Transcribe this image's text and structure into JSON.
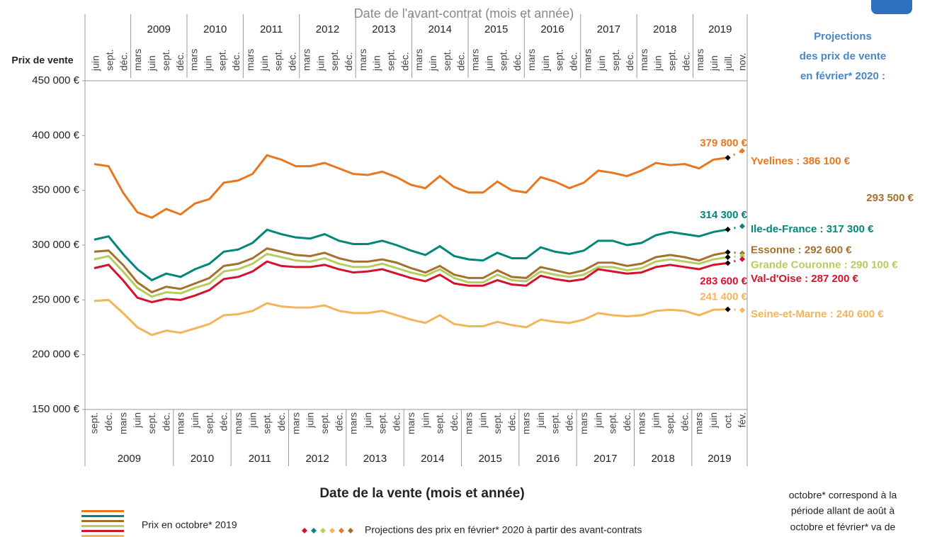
{
  "chart_data": {
    "type": "line",
    "top_axis_title": "Date de l'avant-contrat (mois et année)",
    "x_label": "Date de la vente (mois et année)",
    "y_label": "Prix de vente",
    "side_title": [
      "Projections",
      "des prix de vente",
      "en février* 2020 :"
    ],
    "legend_line": "Prix en octobre* 2019",
    "legend_projection": "Projections des prix en février* 2020 à partir des avant-contrats",
    "note": [
      "octobre* correspond à la",
      "période allant de août à",
      "octobre et février* va de"
    ],
    "categories": [
      "sept.",
      "déc.",
      "mars",
      "juin",
      "sept.",
      "déc.",
      "mars",
      "juin",
      "sept.",
      "déc.",
      "mars",
      "juin",
      "sept.",
      "déc.",
      "mars",
      "juin",
      "sept.",
      "déc.",
      "mars",
      "juin",
      "sept.",
      "déc.",
      "mars",
      "juin",
      "sept.",
      "déc.",
      "mars",
      "juin",
      "sept.",
      "déc.",
      "mars",
      "juin",
      "sept.",
      "déc.",
      "mars",
      "juin",
      "sept.",
      "déc.",
      "mars",
      "juin",
      "sept.",
      "déc.",
      "mars",
      "juin",
      "oct.",
      "fév."
    ],
    "years": [
      "2009",
      "2010",
      "2011",
      "2012",
      "2013",
      "2014",
      "2015",
      "2016",
      "2017",
      "2018",
      "2019"
    ],
    "top_categories": [
      "juin",
      "sept.",
      "déc.",
      "mars",
      "juin",
      "sept.",
      "déc.",
      "mars",
      "juin",
      "sept.",
      "déc.",
      "mars",
      "juin",
      "sept.",
      "déc.",
      "mars",
      "juin",
      "sept.",
      "déc.",
      "mars",
      "juin",
      "sept.",
      "déc.",
      "mars",
      "juin",
      "sept.",
      "déc.",
      "mars",
      "juin",
      "sept.",
      "déc.",
      "mars",
      "juin",
      "sept.",
      "déc.",
      "mars",
      "juin",
      "sept.",
      "déc.",
      "mars",
      "juin",
      "sept.",
      "déc.",
      "mars",
      "juin",
      "juill.",
      "nov."
    ],
    "top_years": [
      "2009",
      "2010",
      "2011",
      "2012",
      "2013",
      "2014",
      "2015",
      "2016",
      "2017",
      "2018",
      "2019"
    ],
    "ylim": [
      150000,
      450000
    ],
    "yticks": [
      {
        "value": 150000,
        "label": "150 000 €"
      },
      {
        "value": 200000,
        "label": "200 000 €"
      },
      {
        "value": 250000,
        "label": "250 000 €"
      },
      {
        "value": 300000,
        "label": "300 000 €"
      },
      {
        "value": 350000,
        "label": "350 000 €"
      },
      {
        "value": 400000,
        "label": "400 000 €"
      },
      {
        "value": 450000,
        "label": "450 000 €"
      }
    ],
    "series": [
      {
        "color": "#E8771F",
        "values": [
          374000,
          372000,
          348000,
          330000,
          325000,
          333000,
          328000,
          338000,
          342000,
          357000,
          359000,
          365000,
          382000,
          378000,
          372000,
          372000,
          375000,
          370000,
          365000,
          364000,
          367000,
          362000,
          355000,
          352000,
          363000,
          353000,
          348000,
          348000,
          358000,
          350000,
          348000,
          362000,
          358000,
          352000,
          357000,
          368000,
          366000,
          363000,
          368000,
          375000,
          373000,
          374000,
          370000,
          378000,
          379800,
          null
        ],
        "last_label": "379 800 €",
        "projection": 386100,
        "projection_label": "Yvelines : 386 100 €"
      },
      {
        "color": "#00877A",
        "values": [
          305000,
          308000,
          292000,
          278000,
          268000,
          274000,
          271000,
          278000,
          283000,
          294000,
          296000,
          302000,
          314000,
          310000,
          307000,
          306000,
          310000,
          304000,
          301000,
          301000,
          304000,
          300000,
          295000,
          291000,
          299000,
          290000,
          287000,
          286000,
          293000,
          288000,
          288000,
          298000,
          294000,
          292000,
          295000,
          304000,
          304000,
          300000,
          302000,
          309000,
          312000,
          310000,
          308000,
          312000,
          314300,
          null
        ],
        "last_label": "314 300 €",
        "projection": 317300,
        "projection_label": "Ile-de-France : 317 300 €"
      },
      {
        "color": "#A5702B",
        "values": [
          294000,
          295000,
          282000,
          266000,
          257000,
          262000,
          260000,
          265000,
          270000,
          281000,
          283000,
          288000,
          297000,
          294000,
          291000,
          290000,
          293000,
          288000,
          285000,
          285000,
          287000,
          284000,
          279000,
          275000,
          281000,
          273000,
          270000,
          270000,
          277000,
          271000,
          270000,
          280000,
          277000,
          274000,
          277000,
          284000,
          284000,
          281000,
          283000,
          289000,
          291000,
          289000,
          286000,
          291000,
          293500,
          null
        ],
        "last_label": "293 500 €",
        "projection": 292600,
        "projection_label": "Essonne : 292 600 €"
      },
      {
        "color": "#B7CC5F",
        "values": [
          287000,
          290000,
          276000,
          261000,
          253000,
          257000,
          256000,
          261000,
          265000,
          276000,
          278000,
          283000,
          292000,
          289000,
          286000,
          285000,
          288000,
          283000,
          280000,
          280000,
          283000,
          279000,
          275000,
          272000,
          278000,
          270000,
          266000,
          266000,
          273000,
          268000,
          267000,
          276000,
          273000,
          271000,
          273000,
          280000,
          280000,
          277000,
          279000,
          285000,
          287000,
          285000,
          283000,
          287000,
          289000,
          null
        ],
        "projection": 290100,
        "projection_label": "Grande Couronne : 290 100 €"
      },
      {
        "color": "#D4122E",
        "values": [
          279000,
          282000,
          268000,
          252000,
          248000,
          251000,
          250000,
          254000,
          259000,
          269000,
          271000,
          276000,
          285000,
          281000,
          280000,
          280000,
          282000,
          278000,
          275000,
          276000,
          278000,
          274000,
          270000,
          267000,
          273000,
          265000,
          263000,
          263000,
          268000,
          264000,
          263000,
          272000,
          269000,
          267000,
          269000,
          278000,
          276000,
          274000,
          275000,
          280000,
          282000,
          280000,
          278000,
          282000,
          283600,
          null
        ],
        "last_label": "283 600 €",
        "projection": 287200,
        "projection_label": "Val-d'Oise : 287 200 €"
      },
      {
        "color": "#F4B45A",
        "values": [
          249000,
          250000,
          238000,
          225000,
          218000,
          222000,
          220000,
          224000,
          228000,
          236000,
          237000,
          240000,
          247000,
          244000,
          243000,
          243000,
          245000,
          240000,
          238000,
          238000,
          240000,
          236000,
          232000,
          229000,
          236000,
          228000,
          226000,
          226000,
          230000,
          227000,
          225000,
          232000,
          230000,
          229000,
          232000,
          238000,
          236000,
          235000,
          236000,
          240000,
          241000,
          240000,
          236000,
          241000,
          241400,
          null
        ],
        "last_label": "241 400 €",
        "projection": 240600,
        "projection_label": "Seine-et-Marne : 240 600 €"
      }
    ]
  }
}
